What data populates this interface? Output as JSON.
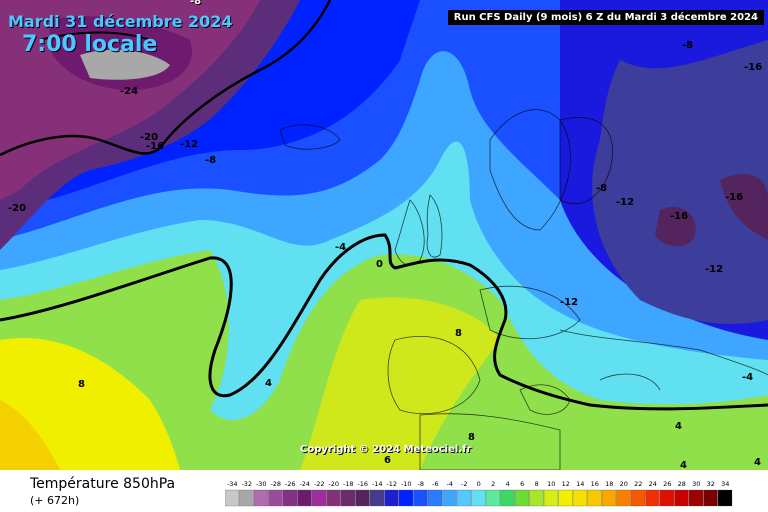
{
  "header": {
    "date": "Mardi 31 décembre 2024",
    "time": "7:00 locale",
    "run": "Run CFS Daily (9 mois) 6 Z du Mardi 3 décembre 2024"
  },
  "copyright": "Copyright © 2024 Meteociel.fr",
  "footer": {
    "parameter": "Température 850hPa",
    "lead": "(+ 672h)"
  },
  "scale": {
    "values": [
      "-34",
      "-32",
      "-30",
      "-28",
      "-26",
      "-24",
      "-22",
      "-20",
      "-18",
      "-16",
      "-14",
      "-12",
      "-10",
      "-8",
      "-6",
      "-4",
      "-2",
      "0",
      "2",
      "4",
      "6",
      "8",
      "10",
      "12",
      "14",
      "16",
      "18",
      "20",
      "22",
      "24",
      "26",
      "28",
      "30",
      "32",
      "34"
    ],
    "colors": [
      "#c8c8c8",
      "#a8a8a8",
      "#b06cb0",
      "#9a4c9a",
      "#843084",
      "#6e1a6e",
      "#9d2f9d",
      "#86307a",
      "#6a2c6a",
      "#54245e",
      "#443b8a",
      "#1f1fd0",
      "#0022ff",
      "#1a50ff",
      "#2a7cff",
      "#3ea6ff",
      "#56c8ff",
      "#60e0f0",
      "#5ceaa0",
      "#3cd764",
      "#6ddc37",
      "#a5e52a",
      "#d4ee1b",
      "#f2f000",
      "#f5e000",
      "#f8c800",
      "#f8a800",
      "#f88000",
      "#f85800",
      "#f03000",
      "#e01000",
      "#c80000",
      "#a00000",
      "#780000",
      "#000000"
    ]
  },
  "labels": [
    "-8",
    "-24",
    "-20",
    "-16",
    "-12",
    "-8",
    "-20",
    "-4",
    "0",
    "4",
    "8",
    "8",
    "-8",
    "-16",
    "-8",
    "-12",
    "-16",
    "-16",
    "-12",
    "-12",
    "-4",
    "4",
    "4",
    "6",
    "8",
    "4"
  ],
  "colors": {
    "title": "#49c9ff",
    "run_box_bg": "#000000"
  }
}
